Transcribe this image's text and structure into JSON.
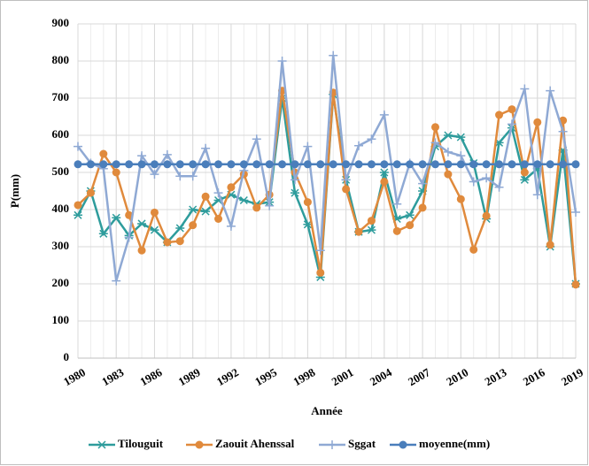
{
  "chart_data": {
    "type": "line",
    "x_label": "Année",
    "y_label": "P(mm)",
    "x": [
      1980,
      1981,
      1982,
      1983,
      1984,
      1985,
      1986,
      1987,
      1988,
      1989,
      1990,
      1991,
      1992,
      1993,
      1994,
      1995,
      1996,
      1997,
      1998,
      1999,
      2000,
      2001,
      2002,
      2003,
      2004,
      2005,
      2006,
      2007,
      2008,
      2009,
      2010,
      2011,
      2012,
      2013,
      2014,
      2015,
      2016,
      2017,
      2018,
      2019
    ],
    "xlim": [
      1980,
      2019
    ],
    "xticks": [
      1980,
      1983,
      1986,
      1989,
      1992,
      1995,
      1998,
      2001,
      2004,
      2007,
      2010,
      2013,
      2016,
      2019
    ],
    "ylim": [
      0,
      900
    ],
    "yticks": [
      0,
      100,
      200,
      300,
      400,
      500,
      600,
      700,
      800,
      900
    ],
    "grid": true,
    "legend": "bottom",
    "series": [
      {
        "name": "Tilouguit",
        "color": "#2e9c9c",
        "marker": "asterisk",
        "values": [
          385,
          450,
          335,
          378,
          330,
          362,
          345,
          312,
          350,
          400,
          395,
          425,
          440,
          425,
          415,
          420,
          700,
          445,
          360,
          218,
          710,
          480,
          340,
          345,
          500,
          375,
          385,
          450,
          570,
          600,
          595,
          525,
          375,
          580,
          620,
          480,
          510,
          300,
          560,
          200
        ]
      },
      {
        "name": "Zaouit Ahenssal",
        "color": "#e08a3c",
        "marker": "circle",
        "values": [
          412,
          445,
          550,
          500,
          385,
          290,
          392,
          312,
          315,
          358,
          435,
          375,
          460,
          495,
          405,
          440,
          720,
          500,
          420,
          230,
          715,
          455,
          340,
          370,
          475,
          342,
          358,
          405,
          622,
          495,
          428,
          292,
          383,
          655,
          670,
          500,
          635,
          305,
          640,
          198
        ]
      },
      {
        "name": "Sggat",
        "color": "#8fa9d4",
        "marker": "plus",
        "values": [
          570,
          525,
          510,
          208,
          325,
          545,
          495,
          548,
          490,
          490,
          565,
          445,
          355,
          505,
          590,
          410,
          800,
          480,
          570,
          290,
          815,
          480,
          572,
          590,
          655,
          415,
          525,
          470,
          580,
          555,
          545,
          475,
          485,
          460,
          630,
          725,
          440,
          720,
          610,
          393
        ]
      },
      {
        "name": "moyenne(mm)",
        "color": "#4a7ebb",
        "marker": "circle",
        "values": [
          522,
          522,
          522,
          522,
          522,
          522,
          522,
          522,
          522,
          522,
          522,
          522,
          522,
          522,
          522,
          522,
          522,
          522,
          522,
          522,
          522,
          522,
          522,
          522,
          522,
          522,
          522,
          522,
          522,
          522,
          522,
          522,
          522,
          522,
          522,
          522,
          522,
          522,
          522,
          522
        ]
      }
    ]
  }
}
